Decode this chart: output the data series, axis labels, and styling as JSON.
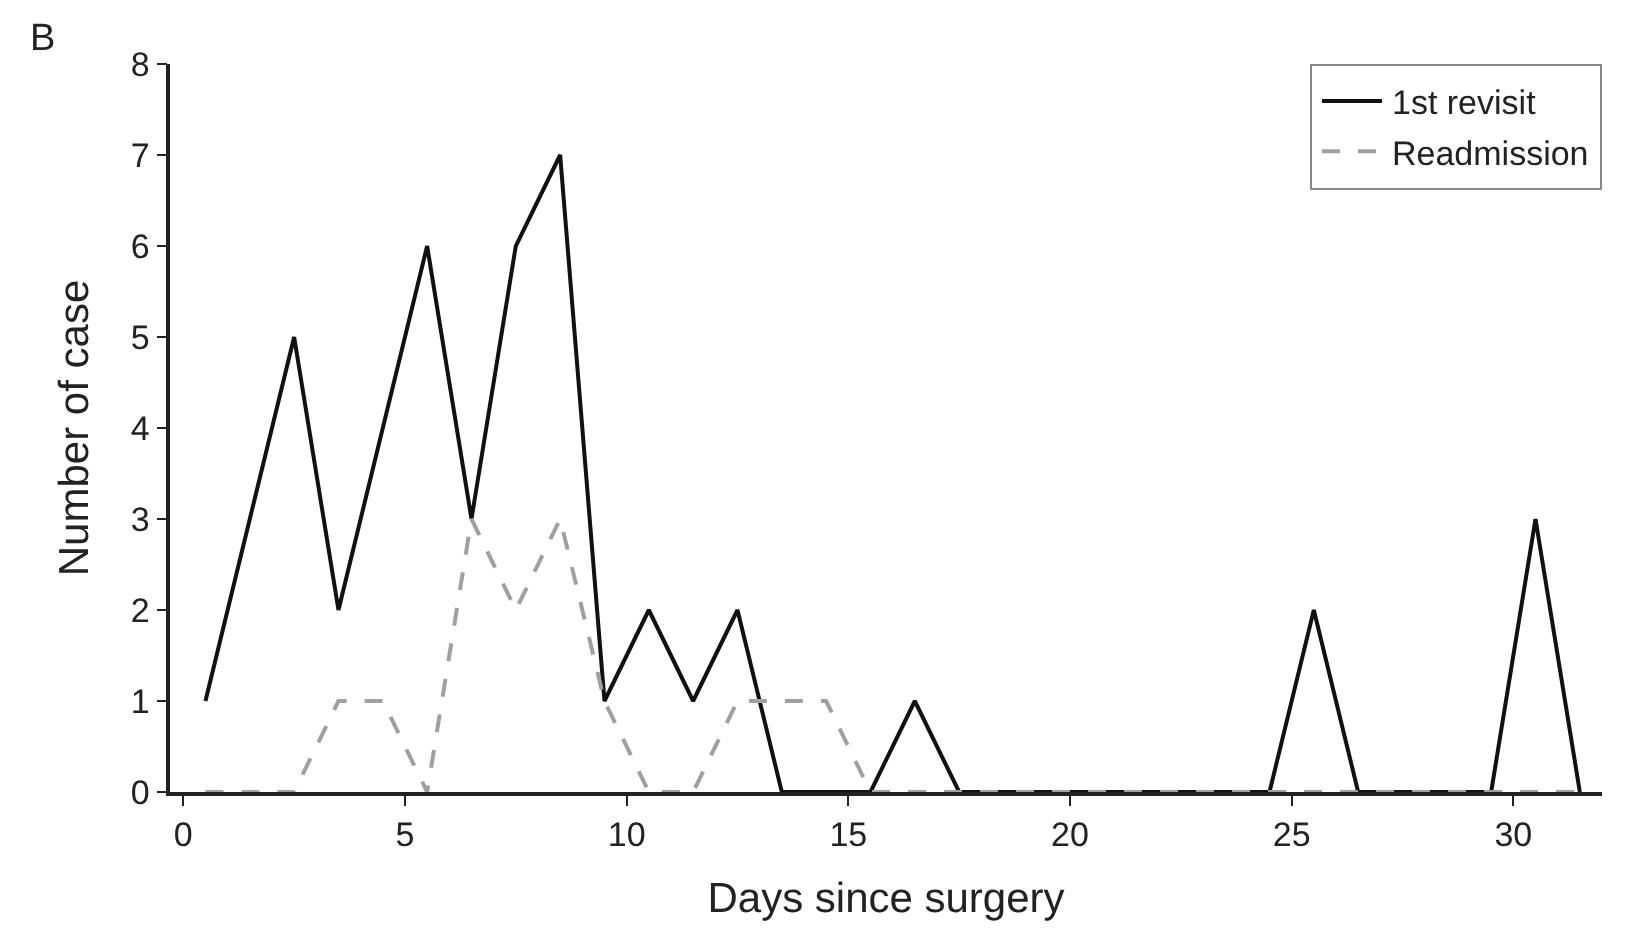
{
  "chart_data": {
    "type": "line",
    "xlabel": "Days since surgery",
    "ylabel": "Number of case",
    "annotations": [
      "B"
    ],
    "x": [
      0.5,
      1.5,
      2.5,
      3.5,
      4.5,
      5.5,
      6.5,
      7.5,
      8.5,
      9.5,
      10.5,
      11.5,
      12.5,
      13.5,
      14.5,
      15.5,
      16.5,
      17.5,
      18.5,
      19.5,
      20.5,
      21.5,
      22.5,
      23.5,
      24.5,
      25.5,
      26.5,
      27.5,
      28.5,
      29.5,
      30.5,
      31.5
    ],
    "series": [
      {
        "name": "1st revisit",
        "color": "#111111",
        "line_style": "solid",
        "values": [
          1,
          3,
          5,
          2,
          4,
          6,
          3,
          6,
          7,
          1,
          2,
          1,
          2,
          0,
          0,
          0,
          1,
          0,
          0,
          0,
          0,
          0,
          0,
          0,
          0,
          2,
          0,
          0,
          0,
          0,
          3,
          0
        ]
      },
      {
        "name": "Readmission",
        "color": "#a0a0a0",
        "line_style": "dashed",
        "values": [
          0,
          0,
          0,
          1,
          1,
          0,
          3,
          2,
          3,
          1,
          0,
          0,
          1,
          1,
          1,
          0,
          0,
          0,
          0,
          0,
          0,
          0,
          0,
          0,
          0,
          0,
          0,
          0,
          0,
          0,
          0,
          0
        ]
      }
    ],
    "xlim": [
      -0.3,
      32
    ],
    "xticks": [
      0,
      5,
      10,
      15,
      20,
      25,
      30
    ],
    "ylim": [
      0,
      8
    ],
    "yticks": [
      0,
      1,
      2,
      3,
      4,
      5,
      6,
      7,
      8
    ],
    "legend": "top right",
    "marker": "none"
  }
}
